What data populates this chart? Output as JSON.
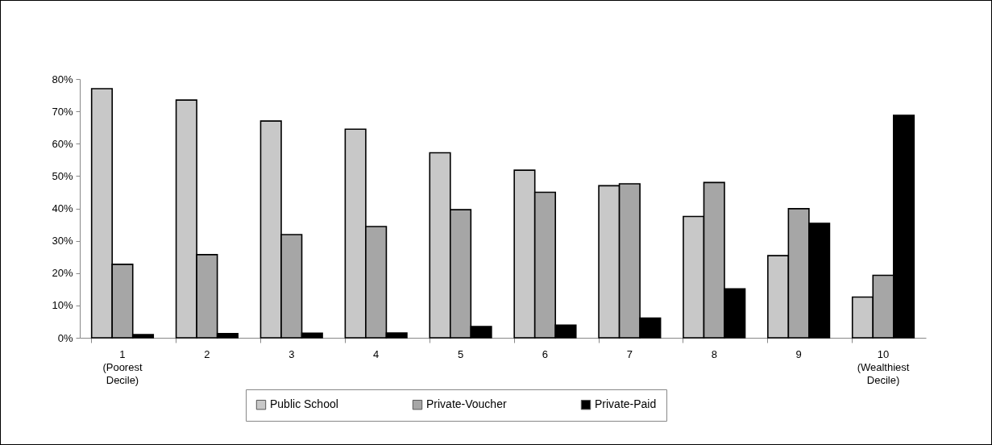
{
  "chart_data": {
    "type": "bar",
    "categories": [
      "1 (Poorest Decile)",
      "2",
      "3",
      "4",
      "5",
      "6",
      "7",
      "8",
      "9",
      "10 (Wealthiest Decile)"
    ],
    "series": [
      {
        "name": "Public School",
        "color": "#c8c8c8",
        "values": [
          77,
          73.5,
          67,
          64.5,
          57.2,
          51.8,
          47,
          37.5,
          25.4,
          12.6
        ]
      },
      {
        "name": "Private-Voucher",
        "color": "#a6a6a6",
        "values": [
          22.7,
          25.7,
          31.9,
          34.4,
          39.6,
          45,
          47.6,
          48,
          39.9,
          19.3
        ]
      },
      {
        "name": "Private-Paid",
        "color": "#000000",
        "values": [
          1,
          1.3,
          1.4,
          1.5,
          3.5,
          3.9,
          6.1,
          15.1,
          35.4,
          68.8
        ]
      }
    ],
    "ylim": [
      0,
      80
    ],
    "yticks": [
      {
        "value": 0,
        "label": "0%"
      },
      {
        "value": 10,
        "label": "10%"
      },
      {
        "value": 20,
        "label": "20%"
      },
      {
        "value": 30,
        "label": "30%"
      },
      {
        "value": 40,
        "label": "40%"
      },
      {
        "value": 50,
        "label": "50%"
      },
      {
        "value": 60,
        "label": "60%"
      },
      {
        "value": 70,
        "label": "70%"
      },
      {
        "value": 80,
        "label": "80%"
      }
    ],
    "grid": false,
    "legend": "bottom"
  }
}
